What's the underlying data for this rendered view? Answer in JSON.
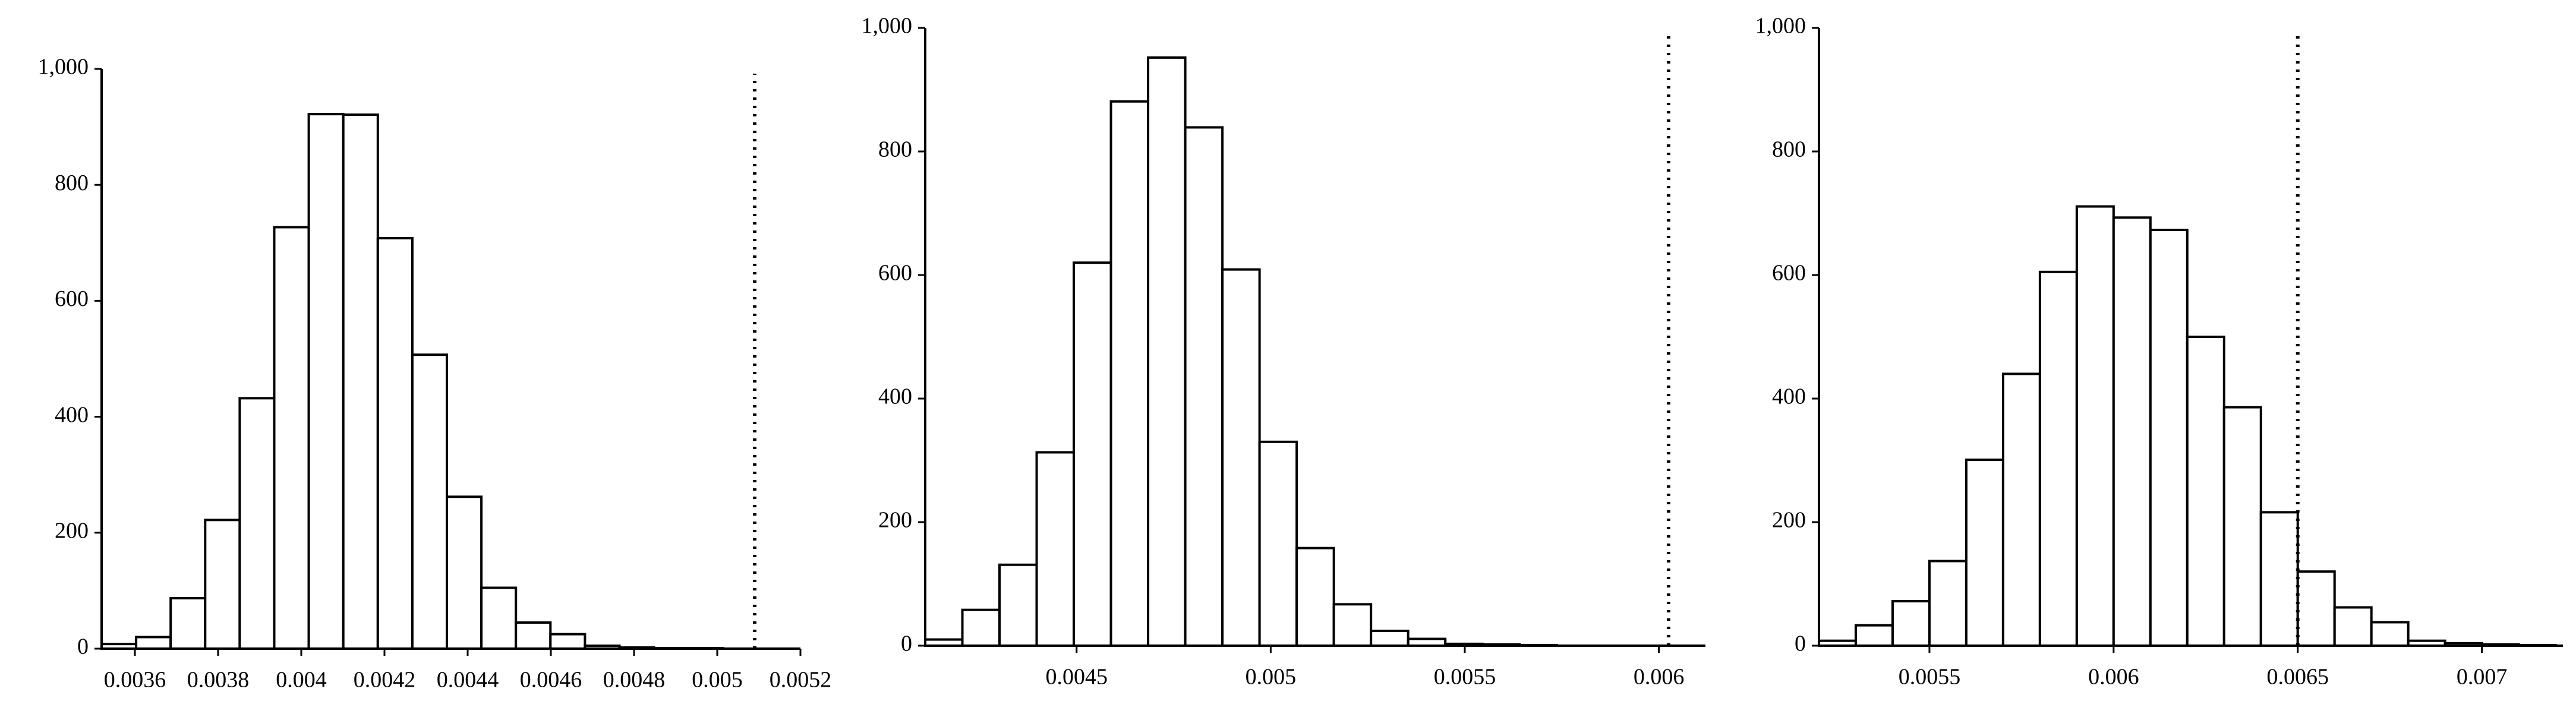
{
  "chart_data": [
    {
      "type": "histogram",
      "color": "#ffffff",
      "edgecolor": "#000000",
      "bins": [
        0.00352,
        0.003603,
        0.003686,
        0.003769,
        0.003852,
        0.003935,
        0.004018,
        0.004101,
        0.004184,
        0.004267,
        0.00435,
        0.004433,
        0.004516,
        0.004599,
        0.004682,
        0.004765,
        0.004848,
        0.004931,
        0.005014
      ],
      "values": [
        8,
        20,
        87,
        222,
        432,
        727,
        922,
        921,
        708,
        507,
        262,
        105,
        45,
        25,
        5,
        2,
        1,
        1
      ],
      "xlim": [
        0.00352,
        0.0052
      ],
      "xticks": [
        0.0036,
        0.0038,
        0.004,
        0.0042,
        0.0044,
        0.0046,
        0.0048,
        0.005,
        0.0052
      ],
      "ylim": [
        0,
        1000
      ],
      "yticks": [
        0,
        200,
        400,
        600,
        800,
        {
          "value": 1000,
          "label": "1,000"
        }
      ],
      "vline": 0.00509
    },
    {
      "type": "histogram",
      "color": "#ffffff",
      "edgecolor": "#000000",
      "bins": [
        0.00411,
        0.0042057,
        0.0043014,
        0.0043971,
        0.0044928,
        0.0045885,
        0.0046842,
        0.0047799,
        0.0048756,
        0.0049713,
        0.005067,
        0.0051627,
        0.0052584,
        0.0053541,
        0.0054498,
        0.0055455,
        0.0056412,
        0.0057369
      ],
      "values": [
        10,
        58,
        131,
        313,
        620,
        881,
        952,
        839,
        609,
        330,
        158,
        67,
        24,
        11,
        3,
        2,
        1
      ],
      "xlim": [
        0.00411,
        0.00612
      ],
      "xticks": [
        0.0045,
        0.005,
        0.0055,
        0.006
      ],
      "ylim": [
        0,
        1000
      ],
      "yticks": [
        0,
        200,
        400,
        600,
        800,
        {
          "value": 1000,
          "label": "1,000"
        }
      ],
      "vline": 0.006025
    },
    {
      "type": "histogram",
      "color": "#ffffff",
      "edgecolor": "#000000",
      "bins": [
        0.0052,
        0.0053,
        0.0054,
        0.0055,
        0.0056,
        0.0057,
        0.0058,
        0.0059,
        0.006,
        0.0061,
        0.0062,
        0.0063,
        0.0064,
        0.0065,
        0.0066,
        0.0067,
        0.0068,
        0.0069,
        0.007,
        0.0071,
        0.0072
      ],
      "values": [
        8,
        33,
        72,
        137,
        301,
        440,
        605,
        711,
        693,
        673,
        500,
        386,
        216,
        120,
        62,
        38,
        8,
        4,
        2,
        1
      ],
      "xlim": [
        0.0052,
        0.00722
      ],
      "xticks": [
        0.0055,
        0.006,
        0.0065,
        0.007
      ],
      "ylim": [
        0,
        1000
      ],
      "yticks": [
        0,
        200,
        400,
        600,
        800,
        {
          "value": 1000,
          "label": "1,000"
        }
      ],
      "vline": 0.0065
    }
  ]
}
